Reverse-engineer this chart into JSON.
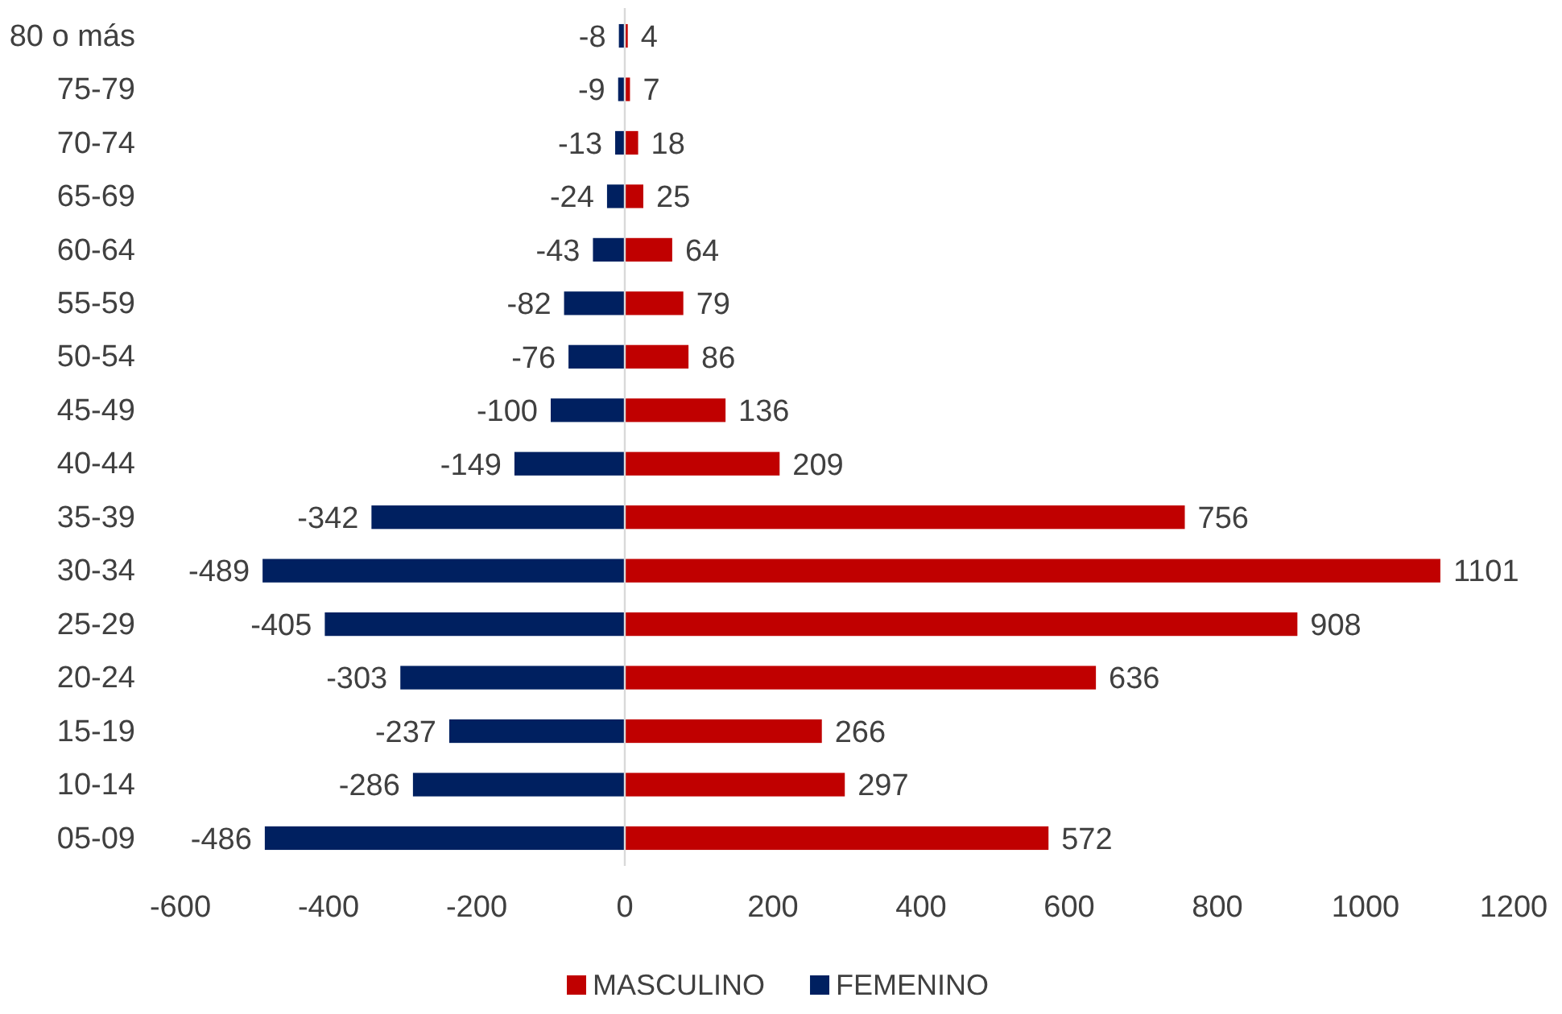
{
  "chart_data": {
    "type": "bar",
    "orientation": "horizontal",
    "stacked": true,
    "ref_lines": [
      {
        "axis": "x",
        "value": 0,
        "color": "#d9d9d9"
      }
    ],
    "data_labels": true,
    "legend": "bottom",
    "grid": false,
    "categories": [
      "80 o más",
      "75-79",
      "70-74",
      "65-69",
      "60-64",
      "55-59",
      "50-54",
      "45-49",
      "40-44",
      "35-39",
      "30-34",
      "25-29",
      "20-24",
      "15-19",
      "10-14",
      "05-09"
    ],
    "series": [
      {
        "name": "MASCULINO",
        "color": "#c00000",
        "values": [
          4,
          7,
          18,
          25,
          64,
          79,
          86,
          136,
          209,
          756,
          1101,
          908,
          636,
          266,
          297,
          572
        ]
      },
      {
        "name": "FEMENINO",
        "color": "#002060",
        "values": [
          -8,
          -9,
          -13,
          -24,
          -43,
          -82,
          -76,
          -100,
          -149,
          -342,
          -489,
          -405,
          -303,
          -237,
          -286,
          -486
        ]
      }
    ],
    "xlim": [
      -600,
      1200
    ],
    "xticks": [
      -600,
      -400,
      -200,
      0,
      200,
      400,
      600,
      800,
      1000,
      1200
    ]
  }
}
